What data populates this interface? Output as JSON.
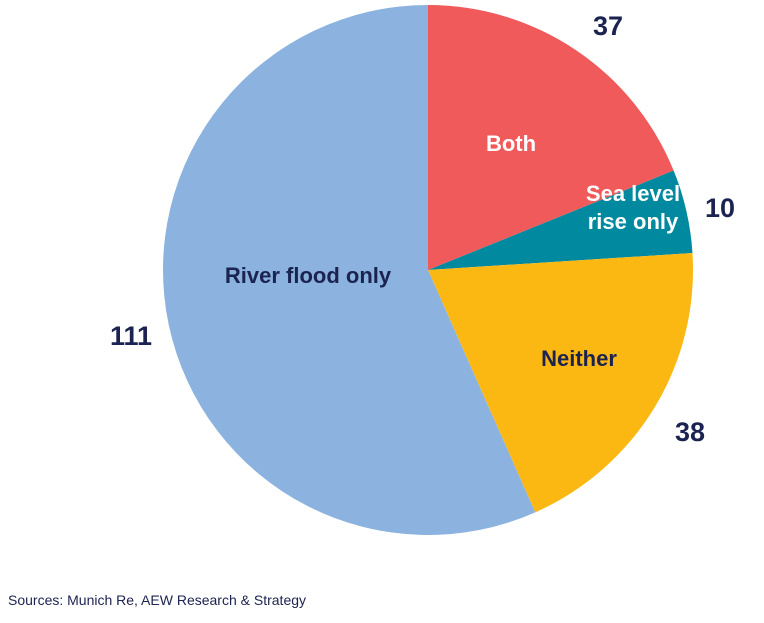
{
  "chart_data": {
    "type": "pie",
    "title": "",
    "categories": [
      "Both",
      "Sea level rise only",
      "Neither",
      "River flood only"
    ],
    "category_lines": [
      [
        "Both"
      ],
      [
        "Sea  level",
        "rise only"
      ],
      [
        "Neither"
      ],
      [
        "River flood only"
      ]
    ],
    "values": [
      37,
      10,
      38,
      111
    ],
    "colors": [
      "#f05a5b",
      "#00899f",
      "#fbb812",
      "#8cb3df"
    ],
    "label_colors": [
      "#ffffff",
      "#ffffff",
      "#1b2350",
      "#1b2350"
    ],
    "start_angle_deg": 0,
    "direction": "clockwise"
  },
  "source": "Sources: Munich Re, AEW Research & Strategy"
}
